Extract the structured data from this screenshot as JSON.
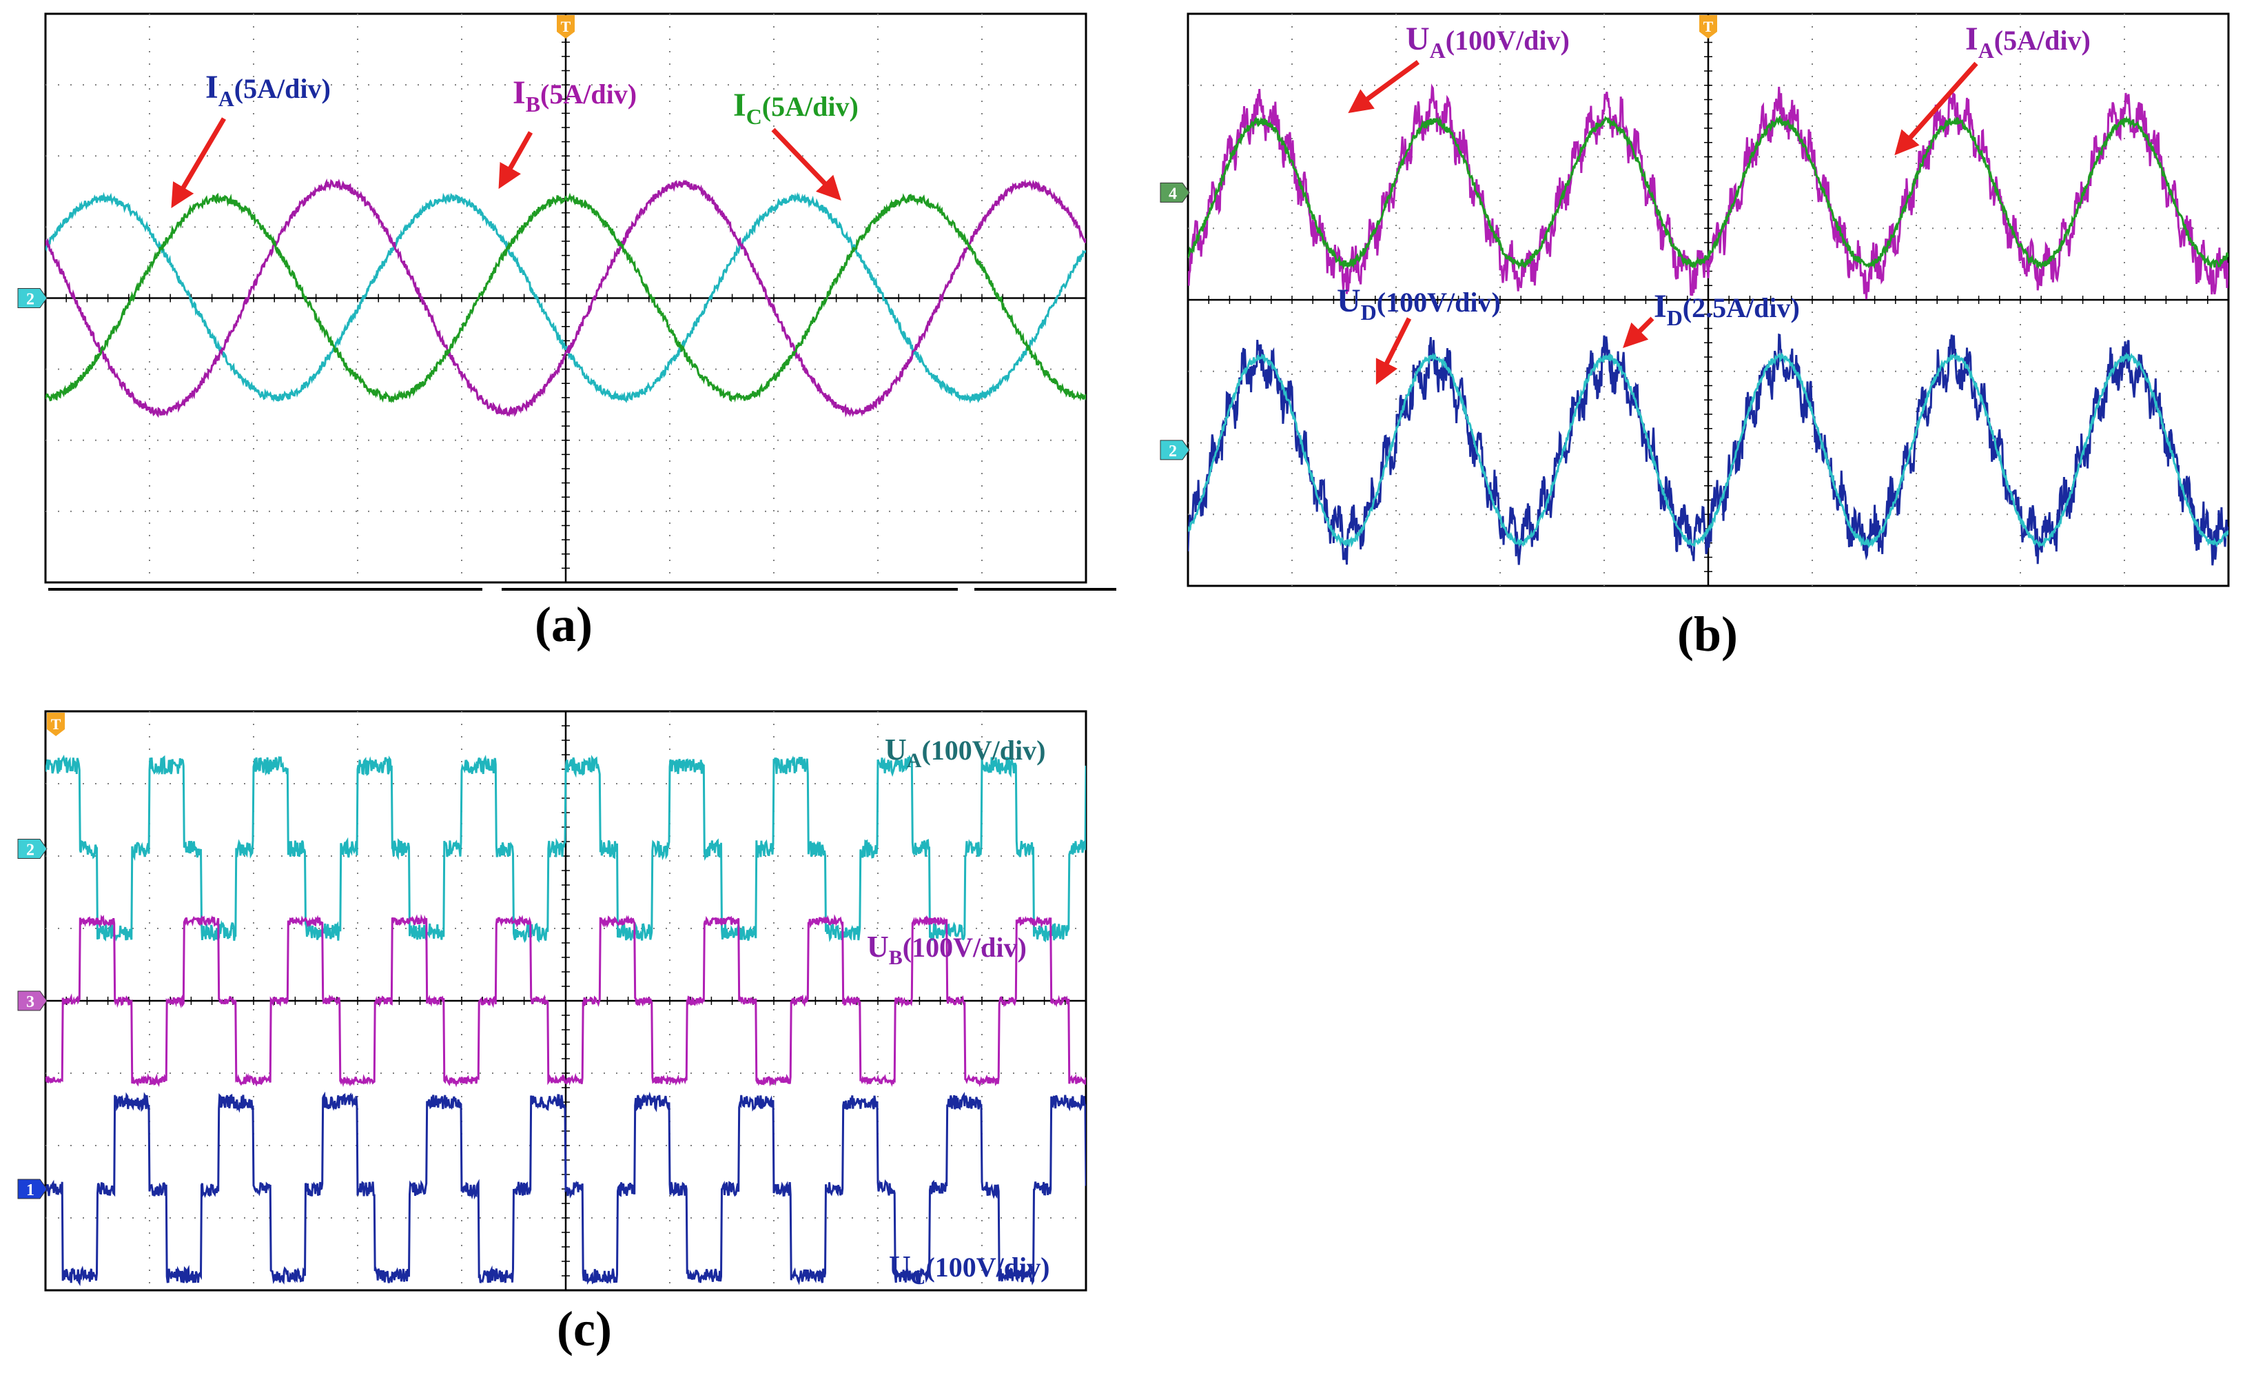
{
  "colors": {
    "background": "#ffffff",
    "grid": "#7f7f7f",
    "axis": "#000000",
    "trigger_marker": "#f5a623",
    "arrow": "#e8211e"
  },
  "chart_data": [
    {
      "id": "a",
      "type": "line",
      "caption": "(a)",
      "grid_divisions": [
        10,
        8
      ],
      "x": {
        "unit": "div",
        "range": [
          0,
          10
        ]
      },
      "y": {
        "unit": "div",
        "range": [
          -4,
          4
        ]
      },
      "channel_markers": [
        {
          "label": "2",
          "y": 0,
          "color": "#3fcfd6"
        }
      ],
      "trigger_marker": {
        "label": "T",
        "x": 5
      },
      "series": [
        {
          "name": "I_A",
          "label_main": "I",
          "label_sub": "A",
          "label_rest": "(5A/div)",
          "color": "#20b5bd",
          "offset": 0,
          "amplitude": 1.4,
          "cycles": 3.0,
          "phase": 30,
          "noise": 0.05,
          "shape": "sine"
        },
        {
          "name": "I_B",
          "label_main": "I",
          "label_sub": "B",
          "label_rest": "(5A/div)",
          "color": "#a31aa6",
          "offset": 0,
          "amplitude": 1.6,
          "cycles": 3.0,
          "phase": 150,
          "noise": 0.05,
          "shape": "sine"
        },
        {
          "name": "I_C",
          "label_main": "I",
          "label_sub": "C",
          "label_rest": "(5A/div)",
          "color": "#1f9c23",
          "offset": 0,
          "amplitude": 1.4,
          "cycles": 3.0,
          "phase": 270,
          "noise": 0.05,
          "shape": "sine"
        }
      ]
    },
    {
      "id": "b",
      "type": "line",
      "caption": "(b)",
      "grid_divisions": [
        10,
        8
      ],
      "x": {
        "unit": "div",
        "range": [
          0,
          10
        ]
      },
      "y": {
        "unit": "div",
        "range": [
          -4,
          4
        ]
      },
      "channel_markers": [
        {
          "label": "4",
          "y": 1.5,
          "color": "#5aa05a"
        },
        {
          "label": "2",
          "y": -2.1,
          "color": "#3fcfd6"
        }
      ],
      "trigger_marker": {
        "label": "T",
        "x": 5
      },
      "series": [
        {
          "name": "U_A",
          "label_main": "U",
          "label_sub": "A",
          "label_rest": "(100V/div)",
          "color": "#b01fb4",
          "offset": 1.5,
          "amplitude": 1.1,
          "cycles": 6.0,
          "phase": 300,
          "noise": 0.22,
          "shape": "sine-noisy"
        },
        {
          "name": "I_A",
          "label_main": "I",
          "label_sub": "A",
          "label_rest": "(5A/div)",
          "color": "#1f9c23",
          "offset": 1.5,
          "amplitude": 1.0,
          "cycles": 6.0,
          "phase": 300,
          "noise": 0.05,
          "shape": "sine"
        },
        {
          "name": "U_D",
          "label_main": "U",
          "label_sub": "D",
          "label_rest": "(100V/div)",
          "color": "#1a2a9e",
          "offset": -2.1,
          "amplitude": 1.2,
          "cycles": 6.0,
          "phase": 300,
          "noise": 0.25,
          "shape": "sine-noisy"
        },
        {
          "name": "I_D",
          "label_main": "I",
          "label_sub": "D",
          "label_rest": "(2.5A/div)",
          "color": "#2cc0c6",
          "offset": -2.1,
          "amplitude": 1.3,
          "cycles": 6.0,
          "phase": 300,
          "noise": 0.04,
          "shape": "sine"
        }
      ]
    },
    {
      "id": "c",
      "type": "line",
      "caption": "(c)",
      "grid_divisions": [
        10,
        8
      ],
      "x": {
        "unit": "div",
        "range": [
          0,
          10
        ]
      },
      "y": {
        "unit": "div",
        "range": [
          -4,
          4
        ]
      },
      "channel_markers": [
        {
          "label": "2",
          "y": 2.1,
          "color": "#3fcfd6"
        },
        {
          "label": "3",
          "y": 0,
          "color": "#c25fc4"
        },
        {
          "label": "1",
          "y": -2.6,
          "color": "#1a3fd6"
        }
      ],
      "trigger_marker": {
        "label": "T",
        "x": 0.1
      },
      "series": [
        {
          "name": "U_A",
          "label_main": "U",
          "label_sub": "A",
          "label_rest": "(100V/div)",
          "color": "#20b5bd",
          "offset": 2.1,
          "amplitude": 1.15,
          "cycles": 10.0,
          "phase": 0,
          "noise": 0.12,
          "shape": "six-step"
        },
        {
          "name": "U_B",
          "label_main": "U",
          "label_sub": "B",
          "label_rest": "(100V/div)",
          "color": "#b01fb4",
          "offset": 0,
          "amplitude": 1.1,
          "cycles": 10.0,
          "phase": 240,
          "noise": 0.05,
          "shape": "six-step"
        },
        {
          "name": "U_C",
          "label_main": "U",
          "label_sub": "C",
          "label_rest": "(100V/div)",
          "color": "#1a2a9e",
          "offset": -2.6,
          "amplitude": 1.2,
          "cycles": 10.0,
          "phase": 120,
          "noise": 0.1,
          "shape": "six-step"
        }
      ]
    }
  ]
}
